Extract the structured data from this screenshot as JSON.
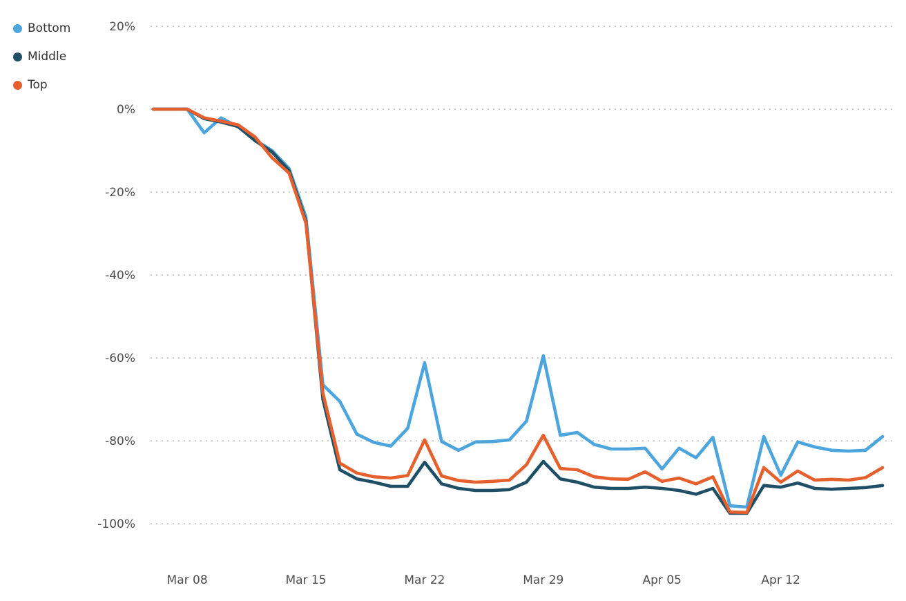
{
  "chart_data": {
    "type": "line",
    "title": "",
    "xlabel": "",
    "ylabel": "",
    "ylim": [
      -100,
      20
    ],
    "grid": "horizontal-dotted",
    "legend_position": "top-left",
    "x": [
      "Mar 06",
      "Mar 07",
      "Mar 08",
      "Mar 09",
      "Mar 10",
      "Mar 11",
      "Mar 12",
      "Mar 13",
      "Mar 14",
      "Mar 15",
      "Mar 16",
      "Mar 17",
      "Mar 18",
      "Mar 19",
      "Mar 20",
      "Mar 21",
      "Mar 22",
      "Mar 23",
      "Mar 24",
      "Mar 25",
      "Mar 26",
      "Mar 27",
      "Mar 28",
      "Mar 29",
      "Mar 30",
      "Mar 31",
      "Apr 01",
      "Apr 02",
      "Apr 03",
      "Apr 04",
      "Apr 05",
      "Apr 06",
      "Apr 07",
      "Apr 08",
      "Apr 09",
      "Apr 10",
      "Apr 11",
      "Apr 12",
      "Apr 13",
      "Apr 14",
      "Apr 15",
      "Apr 16",
      "Apr 17",
      "Apr 18"
    ],
    "series": [
      {
        "name": "Bottom",
        "color": "#4CA5DD",
        "values": [
          0,
          0,
          0,
          -5.7,
          -2.1,
          -4.3,
          -7.4,
          -10,
          -14.3,
          -26,
          -66.5,
          -70.5,
          -78.4,
          -80.4,
          -81.3,
          -77,
          -61.2,
          -80.2,
          -82.3,
          -80.3,
          -80.2,
          -79.8,
          -75.3,
          -59.5,
          -78.7,
          -78,
          -80.9,
          -82,
          -82,
          -81.8,
          -86.8,
          -81.8,
          -84.1,
          -79.2,
          -95.7,
          -96,
          -79,
          -88.3,
          -80.3,
          -81.5,
          -82.3,
          -82.5,
          -82.3,
          -79
        ]
      },
      {
        "name": "Middle",
        "color": "#1F4F66",
        "values": [
          0,
          0,
          0,
          -2.3,
          -3.1,
          -4.2,
          -7.6,
          -10.3,
          -14.8,
          -27,
          -70,
          -87,
          -89.2,
          -90,
          -91,
          -91,
          -85.2,
          -90.4,
          -91.5,
          -92,
          -92,
          -91.8,
          -90,
          -85,
          -89.2,
          -90,
          -91.2,
          -91.5,
          -91.5,
          -91.2,
          -91.5,
          -92,
          -92.9,
          -91.5,
          -97.5,
          -97.5,
          -90.8,
          -91.2,
          -90.2,
          -91.5,
          -91.7,
          -91.5,
          -91.3,
          -90.8
        ]
      },
      {
        "name": "Top",
        "color": "#E6602E",
        "values": [
          0,
          0,
          0,
          -2.1,
          -2.9,
          -3.8,
          -6.7,
          -11.7,
          -15.4,
          -27.5,
          -68.5,
          -85.4,
          -87.8,
          -88.7,
          -89,
          -88.4,
          -79.8,
          -88.5,
          -89.6,
          -90,
          -89.8,
          -89.5,
          -85.8,
          -78.7,
          -86.7,
          -87,
          -88.7,
          -89.2,
          -89.3,
          -87.5,
          -89.8,
          -89,
          -90.4,
          -88.7,
          -97.2,
          -97.3,
          -86.5,
          -90,
          -87.3,
          -89.5,
          -89.3,
          -89.5,
          -88.9,
          -86.5
        ]
      }
    ],
    "y_ticks": [
      {
        "value": 20,
        "label": "20%"
      },
      {
        "value": 0,
        "label": "0%"
      },
      {
        "value": -20,
        "label": "-20%"
      },
      {
        "value": -40,
        "label": "-40%"
      },
      {
        "value": -60,
        "label": "-60%"
      },
      {
        "value": -80,
        "label": "-80%"
      },
      {
        "value": -100,
        "label": "-100%"
      }
    ],
    "x_ticks": [
      {
        "index": 2,
        "label": "Mar 08"
      },
      {
        "index": 9,
        "label": "Mar 15"
      },
      {
        "index": 16,
        "label": "Mar 22"
      },
      {
        "index": 23,
        "label": "Mar 29"
      },
      {
        "index": 30,
        "label": "Apr 05"
      },
      {
        "index": 37,
        "label": "Apr 12"
      }
    ],
    "colors": {
      "grid": "#C7C7C7",
      "tick_label": "#4D4D4D",
      "legend_label": "#333333",
      "background": "#FFFFFF"
    }
  }
}
